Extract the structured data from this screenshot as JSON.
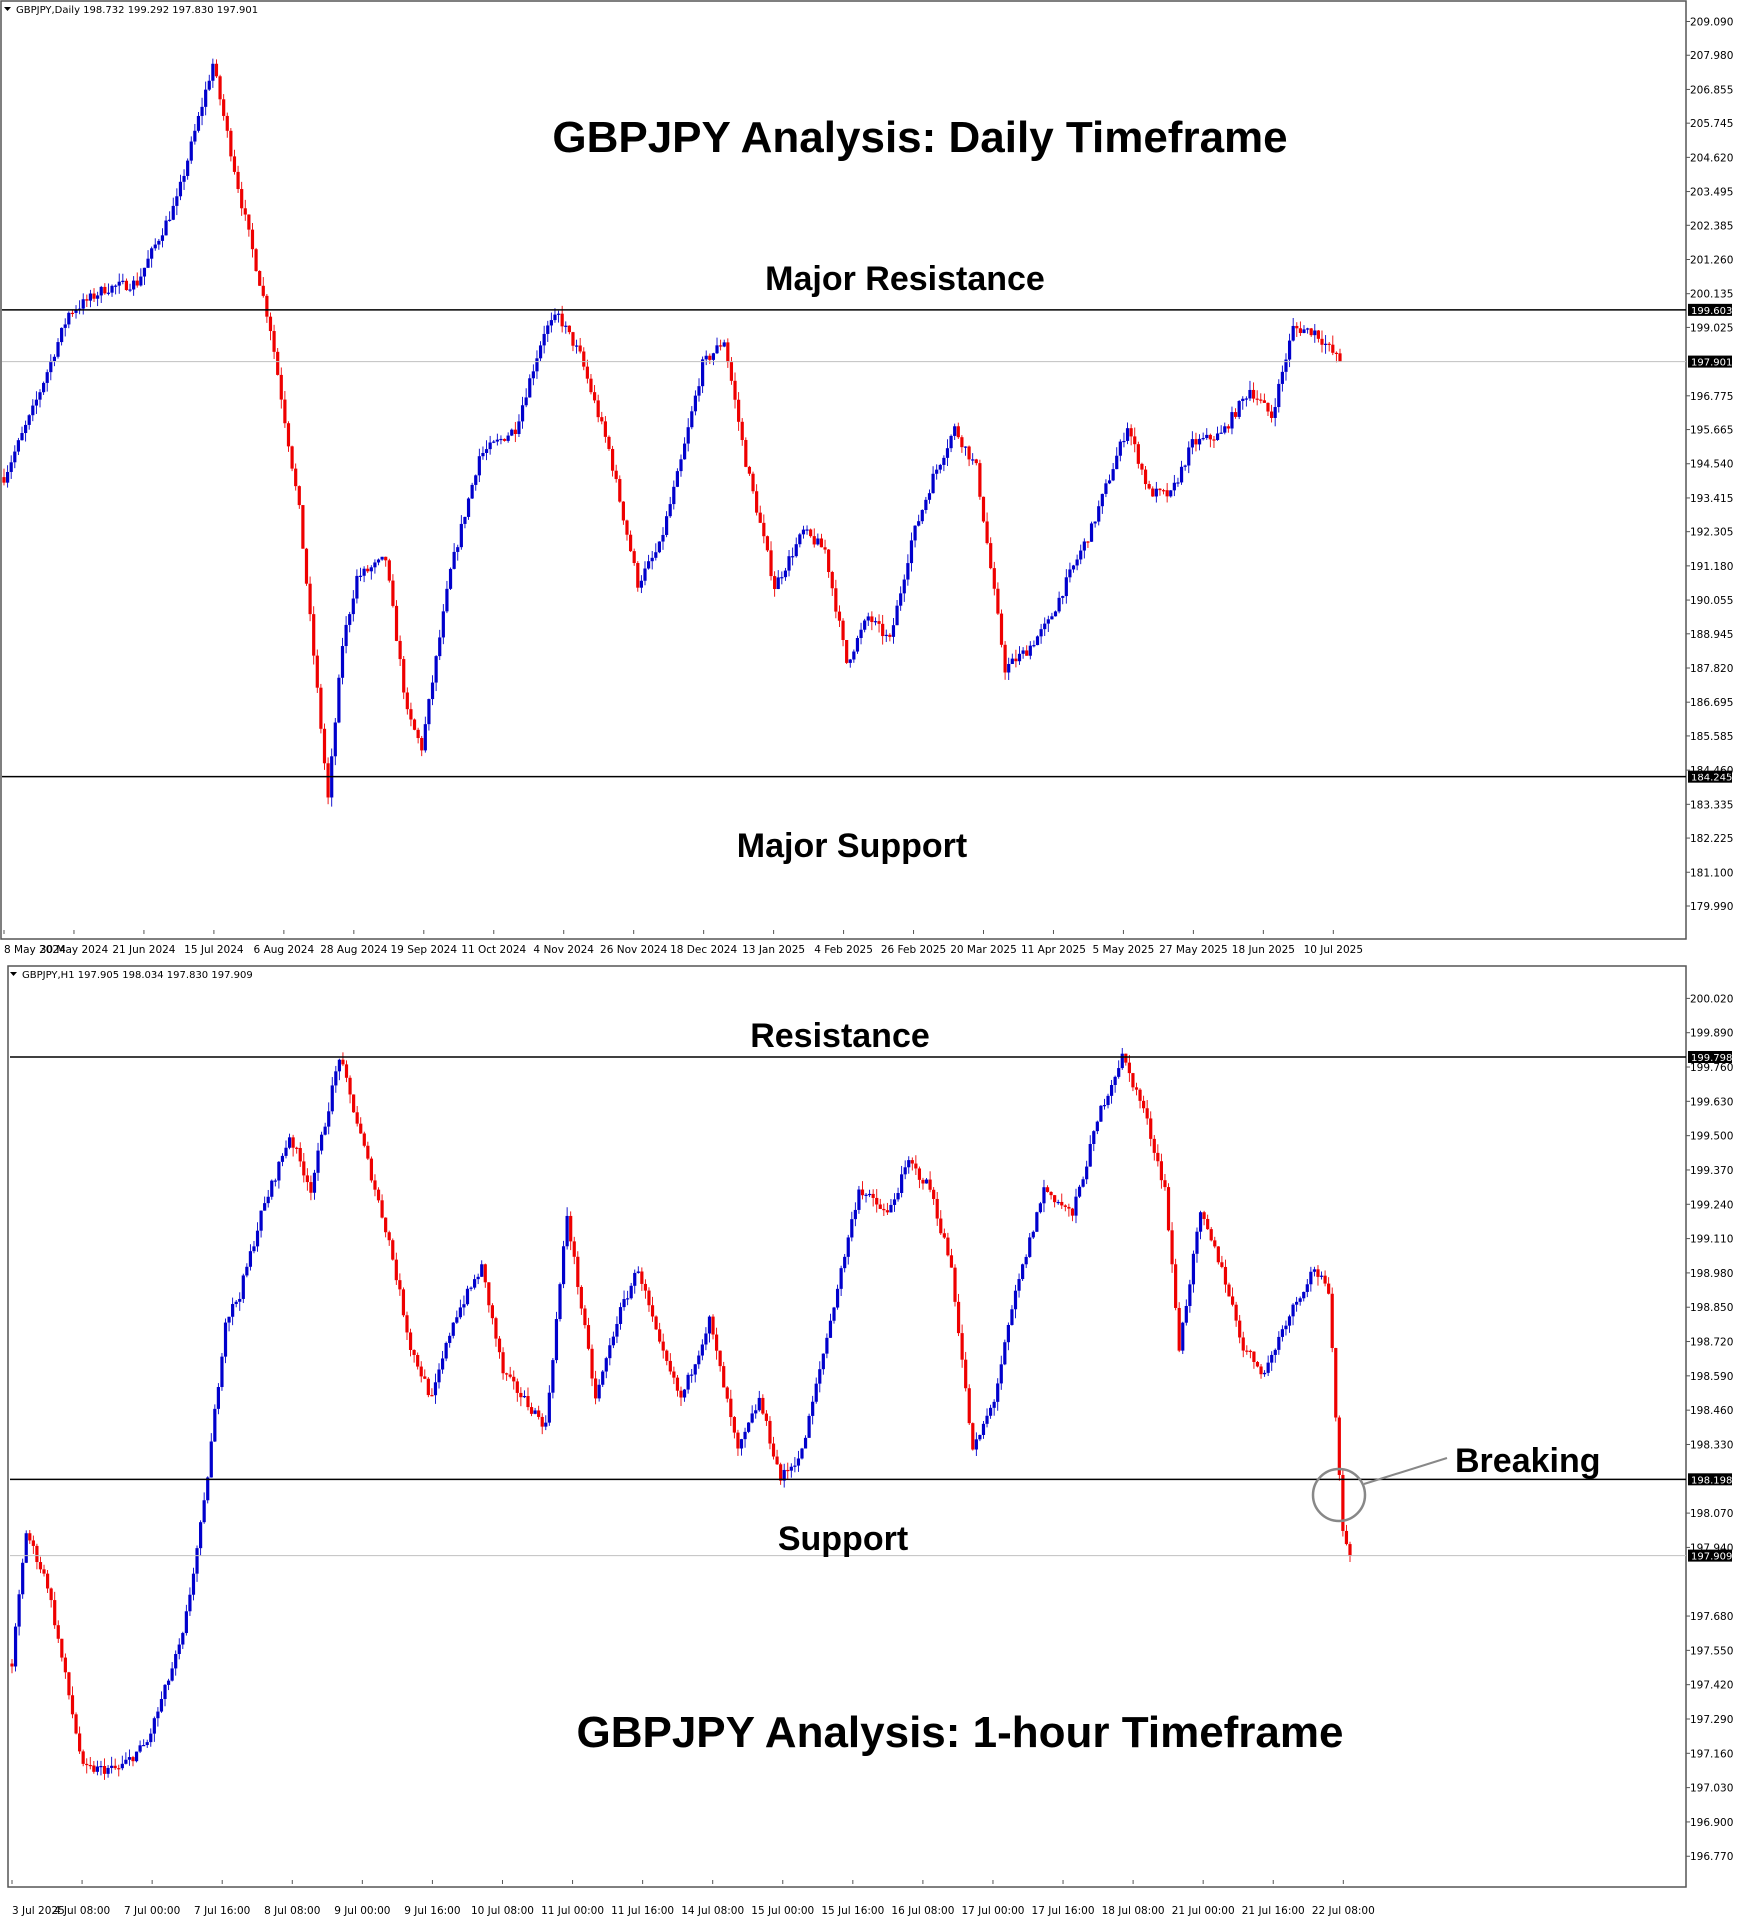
{
  "colors": {
    "bull": "#0000cc",
    "bear": "#ee0000",
    "frame": "#555555",
    "level": "#000000",
    "tag_bg": "#000000",
    "annotation": "#000000"
  },
  "chart_data": [
    {
      "type": "candlestick",
      "symbol": "GBPJPY",
      "timeframe": "Daily",
      "header": "GBPJPY,Daily  198.732 199.292 197.830 197.901",
      "annotation_title": "GBPJPY Analysis: Daily Timeframe",
      "ylim": [
        179.2,
        209.6
      ],
      "y_ticks": [
        "209.090",
        "207.980",
        "206.855",
        "205.745",
        "204.620",
        "203.495",
        "202.385",
        "201.260",
        "200.135",
        "199.025",
        "196.775",
        "195.665",
        "194.540",
        "193.415",
        "192.305",
        "191.180",
        "190.055",
        "188.945",
        "187.820",
        "186.695",
        "185.585",
        "184.460",
        "183.335",
        "182.225",
        "181.100",
        "179.990"
      ],
      "x_ticks": [
        "8 May 2024",
        "30 May 2024",
        "21 Jun 2024",
        "15 Jul 2024",
        "6 Aug 2024",
        "28 Aug 2024",
        "19 Sep 2024",
        "11 Oct 2024",
        "4 Nov 2024",
        "26 Nov 2024",
        "18 Dec 2024",
        "13 Jan 2025",
        "4 Feb 2025",
        "26 Feb 2025",
        "20 Mar 2025",
        "11 Apr 2025",
        "5 May 2025",
        "27 May 2025",
        "18 Jun 2025",
        "10 Jul 2025"
      ],
      "waypoints": [
        [
          0,
          194.1
        ],
        [
          8,
          196.3
        ],
        [
          18,
          199.5
        ],
        [
          28,
          200.3
        ],
        [
          37,
          200.5
        ],
        [
          48,
          203.2
        ],
        [
          58,
          207.7
        ],
        [
          66,
          203.1
        ],
        [
          74,
          199.0
        ],
        [
          82,
          193.0
        ],
        [
          90,
          183.5
        ],
        [
          94,
          188.6
        ],
        [
          98,
          190.8
        ],
        [
          106,
          191.4
        ],
        [
          112,
          186.3
        ],
        [
          116,
          185.2
        ],
        [
          124,
          191.0
        ],
        [
          132,
          194.8
        ],
        [
          142,
          195.7
        ],
        [
          150,
          198.9
        ],
        [
          154,
          199.4
        ],
        [
          160,
          198.1
        ],
        [
          168,
          195.0
        ],
        [
          176,
          190.6
        ],
        [
          182,
          191.8
        ],
        [
          188,
          194.6
        ],
        [
          194,
          197.8
        ],
        [
          200,
          198.6
        ],
        [
          206,
          194.6
        ],
        [
          214,
          190.5
        ],
        [
          222,
          192.3
        ],
        [
          228,
          191.7
        ],
        [
          234,
          188.0
        ],
        [
          240,
          189.5
        ],
        [
          246,
          188.7
        ],
        [
          252,
          192.0
        ],
        [
          258,
          194.1
        ],
        [
          264,
          195.7
        ],
        [
          270,
          194.4
        ],
        [
          278,
          187.8
        ],
        [
          284,
          188.4
        ],
        [
          290,
          189.3
        ],
        [
          296,
          190.9
        ],
        [
          302,
          192.4
        ],
        [
          312,
          195.8
        ],
        [
          318,
          193.6
        ],
        [
          324,
          193.5
        ],
        [
          330,
          195.2
        ],
        [
          338,
          195.5
        ],
        [
          346,
          197.0
        ],
        [
          352,
          196.1
        ],
        [
          358,
          199.0
        ],
        [
          364,
          198.9
        ],
        [
          371,
          197.9
        ]
      ],
      "current_price": "197.901",
      "levels": [
        {
          "label": "Major Resistance",
          "price": 199.603,
          "price_text": "199.603"
        },
        {
          "label": "Major Support",
          "price": 184.245,
          "price_text": "184.245"
        }
      ]
    },
    {
      "type": "candlestick",
      "symbol": "GBPJPY",
      "timeframe": "H1",
      "header": "GBPJPY,H1  197.905 198.034 197.830 197.909",
      "annotation_title": "GBPJPY Analysis: 1-hour Timeframe",
      "ylim": [
        196.68,
        200.12
      ],
      "y_ticks": [
        "200.020",
        "199.890",
        "199.760",
        "199.630",
        "199.500",
        "199.370",
        "199.240",
        "199.110",
        "198.980",
        "198.850",
        "198.720",
        "198.590",
        "198.460",
        "198.330",
        "198.070",
        "197.940",
        "197.680",
        "197.550",
        "197.420",
        "197.290",
        "197.160",
        "197.030",
        "196.900",
        "196.770"
      ],
      "x_ticks": [
        "3 Jul 2025",
        "4 Jul 08:00",
        "7 Jul 00:00",
        "7 Jul 16:00",
        "8 Jul 08:00",
        "9 Jul 00:00",
        "9 Jul 16:00",
        "10 Jul 08:00",
        "11 Jul 00:00",
        "11 Jul 16:00",
        "14 Jul 08:00",
        "15 Jul 00:00",
        "15 Jul 16:00",
        "16 Jul 08:00",
        "17 Jul 00:00",
        "17 Jul 16:00",
        "18 Jul 08:00",
        "21 Jul 00:00",
        "21 Jul 16:00",
        "22 Jul 08:00"
      ],
      "waypoints": [
        [
          0,
          197.5
        ],
        [
          4,
          198.0
        ],
        [
          10,
          197.8
        ],
        [
          20,
          197.1
        ],
        [
          30,
          197.1
        ],
        [
          38,
          197.2
        ],
        [
          48,
          197.6
        ],
        [
          54,
          198.1
        ],
        [
          60,
          198.8
        ],
        [
          64,
          198.9
        ],
        [
          70,
          199.2
        ],
        [
          78,
          199.5
        ],
        [
          84,
          199.3
        ],
        [
          92,
          199.8
        ],
        [
          100,
          199.4
        ],
        [
          106,
          199.1
        ],
        [
          112,
          198.7
        ],
        [
          118,
          198.5
        ],
        [
          124,
          198.8
        ],
        [
          132,
          199.0
        ],
        [
          138,
          198.6
        ],
        [
          144,
          198.5
        ],
        [
          150,
          198.4
        ],
        [
          156,
          199.2
        ],
        [
          164,
          198.5
        ],
        [
          170,
          198.8
        ],
        [
          176,
          199.0
        ],
        [
          182,
          198.7
        ],
        [
          188,
          198.5
        ],
        [
          196,
          198.8
        ],
        [
          204,
          198.3
        ],
        [
          210,
          198.5
        ],
        [
          216,
          198.2
        ],
        [
          222,
          198.3
        ],
        [
          230,
          198.8
        ],
        [
          238,
          199.3
        ],
        [
          246,
          199.2
        ],
        [
          252,
          199.4
        ],
        [
          258,
          199.3
        ],
        [
          264,
          199.0
        ],
        [
          270,
          198.3
        ],
        [
          276,
          198.5
        ],
        [
          282,
          198.9
        ],
        [
          290,
          199.3
        ],
        [
          298,
          199.2
        ],
        [
          306,
          199.6
        ],
        [
          312,
          199.8
        ],
        [
          318,
          199.6
        ],
        [
          324,
          199.3
        ],
        [
          328,
          198.7
        ],
        [
          334,
          199.2
        ],
        [
          340,
          199.0
        ],
        [
          346,
          198.7
        ],
        [
          352,
          198.6
        ],
        [
          358,
          198.8
        ],
        [
          366,
          199.0
        ],
        [
          370,
          198.9
        ],
        [
          374,
          198.0
        ],
        [
          376,
          197.9
        ]
      ],
      "current_price": "197.909",
      "levels": [
        {
          "label": "Resistance",
          "price": 199.798,
          "price_text": "199.798"
        },
        {
          "label": "Support",
          "price": 198.198,
          "price_text": "198.198"
        }
      ],
      "callout": "Breaking"
    }
  ]
}
